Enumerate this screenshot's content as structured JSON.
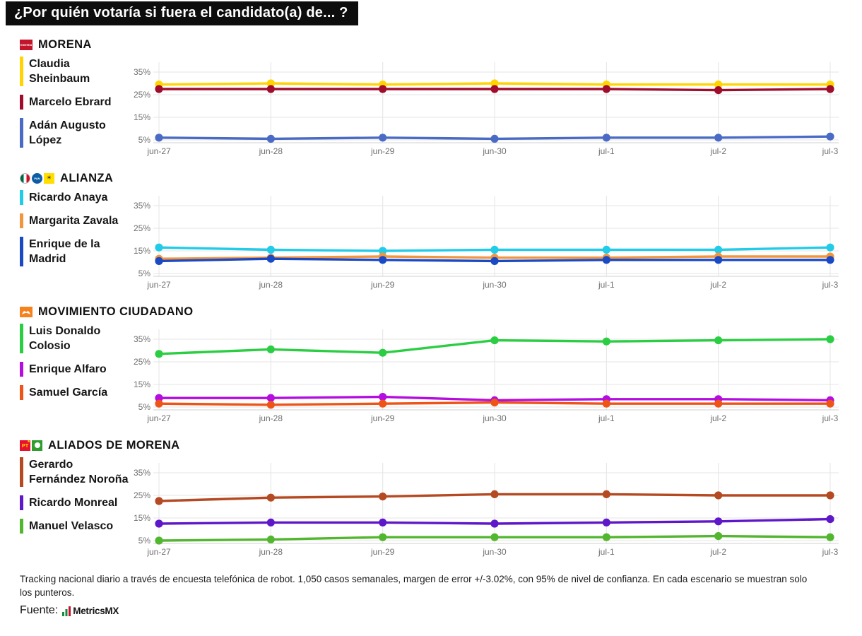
{
  "title": "¿Por quién votaría si fuera el candidato(a) de... ?",
  "sections": [
    {
      "party": "MORENA",
      "logos": [
        "morena-logo"
      ]
    },
    {
      "party": "ALIANZA",
      "logos": [
        "pri-logo",
        "pan-logo",
        "prd-logo"
      ]
    },
    {
      "party": "MOVIMIENTO CIUDADANO",
      "logos": [
        "mc-logo"
      ]
    },
    {
      "party": "ALIADOS DE MORENA",
      "logos": [
        "pt-logo",
        "pvem-logo"
      ]
    }
  ],
  "chart_data": [
    {
      "type": "line",
      "title": "MORENA",
      "x": [
        "jun-27",
        "jun-28",
        "jun-29",
        "jun-30",
        "jul-1",
        "jul-2",
        "jul-3"
      ],
      "yticks": [
        35,
        25,
        15,
        5
      ],
      "ylim": [
        4,
        40
      ],
      "grid": true,
      "legend_position": "left",
      "series": [
        {
          "name": "Claudia Sheinbaum",
          "color": "#FFD400",
          "values": [
            29.5,
            30,
            29.5,
            30,
            29.5,
            29.5,
            29.5
          ]
        },
        {
          "name": "Marcelo Ebrard",
          "color": "#A00D2C",
          "values": [
            27.5,
            27.5,
            27.5,
            27.5,
            27.5,
            27,
            27.5
          ]
        },
        {
          "name": "Adán Augusto López",
          "color": "#4A6BC5",
          "values": [
            6,
            5.5,
            6,
            5.5,
            6,
            6,
            6.5
          ]
        }
      ]
    },
    {
      "type": "line",
      "title": "ALIANZA",
      "x": [
        "jun-27",
        "jun-28",
        "jun-29",
        "jun-30",
        "jul-1",
        "jul-2",
        "jul-3"
      ],
      "yticks": [
        35,
        25,
        15,
        5
      ],
      "ylim": [
        4,
        40
      ],
      "grid": true,
      "legend_position": "left",
      "series": [
        {
          "name": "Ricardo Anaya",
          "color": "#22CBE8",
          "values": [
            16.5,
            15.5,
            15,
            15.5,
            15.5,
            15.5,
            16.5
          ]
        },
        {
          "name": "Margarita Zavala",
          "color": "#F2953F",
          "values": [
            11.5,
            12,
            12.5,
            12,
            12,
            12.5,
            12.5
          ]
        },
        {
          "name": "Enrique de la Madrid",
          "color": "#1A49C4",
          "values": [
            10.5,
            11.5,
            11,
            10.5,
            11,
            11,
            11
          ]
        }
      ]
    },
    {
      "type": "line",
      "title": "MOVIMIENTO CIUDADANO",
      "x": [
        "jun-27",
        "jun-28",
        "jun-29",
        "jun-30",
        "jul-1",
        "jul-2",
        "jul-3"
      ],
      "yticks": [
        35,
        25,
        15,
        5
      ],
      "ylim": [
        4,
        40
      ],
      "grid": true,
      "legend_position": "left",
      "series": [
        {
          "name": "Luis Donaldo Colosio",
          "color": "#2BCE43",
          "values": [
            28.5,
            30.5,
            29,
            34.5,
            34,
            34.5,
            35
          ]
        },
        {
          "name": "Enrique Alfaro",
          "color": "#B30DE0",
          "values": [
            9,
            9,
            9.5,
            8,
            8.5,
            8.5,
            8
          ]
        },
        {
          "name": "Samuel García",
          "color": "#EE5418",
          "values": [
            6.5,
            6,
            6.5,
            7,
            6.5,
            6.5,
            6.5
          ]
        }
      ]
    },
    {
      "type": "line",
      "title": "ALIADOS DE MORENA",
      "x": [
        "jun-27",
        "jun-28",
        "jun-29",
        "jun-30",
        "jul-1",
        "jul-2",
        "jul-3"
      ],
      "yticks": [
        35,
        25,
        15,
        5
      ],
      "ylim": [
        4,
        40
      ],
      "grid": true,
      "legend_position": "left",
      "series": [
        {
          "name": "Gerardo Fernández Noroña",
          "color": "#B54A22",
          "values": [
            22.5,
            24,
            24.5,
            25.5,
            25.5,
            25,
            25
          ]
        },
        {
          "name": "Ricardo Monreal",
          "color": "#5E17C9",
          "values": [
            12.5,
            13,
            13,
            12.5,
            13,
            13.5,
            14.5
          ]
        },
        {
          "name": "Manuel Velasco",
          "color": "#52B62E",
          "values": [
            5,
            5.5,
            6.5,
            6.5,
            6.5,
            7,
            6.5
          ]
        }
      ]
    }
  ],
  "footer": {
    "note": "Tracking nacional diario a través de encuesta telefónica de robot. 1,050 casos semanales, margen de error +/-3.02%, con 95% de nivel de confianza. En cada escenario se muestran solo los punteros.",
    "source_label": "Fuente:",
    "source_name": "MetricsMX"
  }
}
